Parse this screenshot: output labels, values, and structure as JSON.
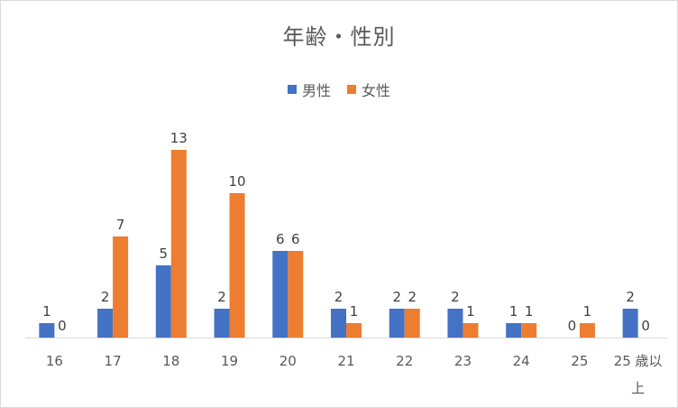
{
  "chart_data": {
    "type": "bar",
    "title": "年齢・性別",
    "categories": [
      "16",
      "17",
      "18",
      "19",
      "20",
      "21",
      "22",
      "23",
      "24",
      "25",
      "25 歳以上"
    ],
    "category_lines": [
      [
        "16"
      ],
      [
        "17"
      ],
      [
        "18"
      ],
      [
        "19"
      ],
      [
        "20"
      ],
      [
        "21"
      ],
      [
        "22"
      ],
      [
        "23"
      ],
      [
        "24"
      ],
      [
        "25"
      ],
      [
        "25 歳以",
        "上"
      ]
    ],
    "series": [
      {
        "name": "男性",
        "color": "#4472c4",
        "values": [
          1,
          2,
          5,
          2,
          6,
          2,
          2,
          2,
          1,
          0,
          2
        ]
      },
      {
        "name": "女性",
        "color": "#ed7d31",
        "values": [
          0,
          7,
          13,
          10,
          6,
          1,
          2,
          1,
          1,
          1,
          0
        ]
      }
    ],
    "ylim": [
      0,
      13
    ],
    "grid": false,
    "legend_position": "top",
    "data_labels": true
  }
}
